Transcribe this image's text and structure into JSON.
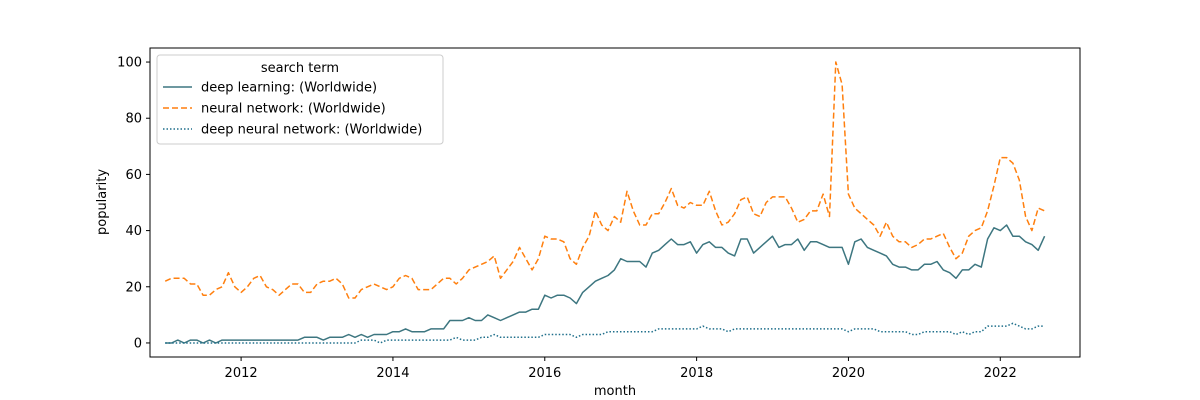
{
  "chart_data": {
    "type": "line",
    "xlabel": "month",
    "ylabel": "popularity",
    "xlim": [
      2010.8,
      2023.05
    ],
    "ylim": [
      -5,
      105
    ],
    "x_ticks": [
      2012,
      2014,
      2016,
      2018,
      2020,
      2022
    ],
    "y_ticks": [
      0,
      20,
      40,
      60,
      80,
      100
    ],
    "grid": false,
    "legend": {
      "title": "search term",
      "placement": "top-left"
    },
    "x_start": "2011-01",
    "series": [
      {
        "name": "deep learning: (Worldwide)",
        "color": "#3d7680",
        "style": "solid",
        "values": [
          0,
          0,
          1,
          0,
          1,
          1,
          0,
          1,
          0,
          1,
          1,
          1,
          1,
          1,
          1,
          1,
          1,
          1,
          1,
          1,
          1,
          1,
          2,
          2,
          2,
          1,
          2,
          2,
          2,
          3,
          2,
          3,
          2,
          3,
          3,
          3,
          4,
          4,
          5,
          4,
          4,
          4,
          5,
          5,
          5,
          8,
          8,
          8,
          9,
          8,
          8,
          10,
          9,
          8,
          9,
          10,
          11,
          11,
          12,
          12,
          17,
          16,
          17,
          17,
          16,
          14,
          18,
          20,
          22,
          23,
          24,
          26,
          30,
          29,
          29,
          29,
          27,
          32,
          33,
          35,
          37,
          35,
          35,
          36,
          32,
          35,
          36,
          34,
          34,
          32,
          31,
          37,
          37,
          32,
          34,
          36,
          38,
          34,
          35,
          35,
          37,
          33,
          36,
          36,
          35,
          34,
          34,
          34,
          28,
          36,
          37,
          34,
          33,
          32,
          31,
          28,
          27,
          27,
          26,
          26,
          28,
          28,
          29,
          26,
          25,
          23,
          26,
          26,
          28,
          27,
          37,
          41,
          40,
          42,
          38,
          38,
          36,
          35,
          33,
          38
        ]
      },
      {
        "name": "neural network: (Worldwide)",
        "color": "#ff7f0e",
        "style": "dashed",
        "values": [
          22,
          23,
          23,
          23,
          21,
          21,
          17,
          17,
          19,
          20,
          25,
          20,
          18,
          20,
          23,
          24,
          20,
          19,
          17,
          19,
          21,
          21,
          18,
          18,
          21,
          22,
          22,
          23,
          21,
          16,
          16,
          19,
          20,
          21,
          20,
          19,
          20,
          23,
          24,
          23,
          19,
          19,
          19,
          21,
          23,
          23,
          21,
          23,
          26,
          27,
          28,
          29,
          31,
          23,
          26,
          29,
          34,
          30,
          26,
          30,
          38,
          37,
          37,
          36,
          30,
          28,
          34,
          38,
          47,
          42,
          40,
          45,
          43,
          54,
          47,
          42,
          42,
          46,
          46,
          50,
          55,
          49,
          48,
          50,
          49,
          49,
          54,
          47,
          42,
          43,
          46,
          51,
          52,
          46,
          45,
          50,
          52,
          52,
          52,
          48,
          43,
          44,
          47,
          47,
          53,
          45,
          100,
          92,
          53,
          48,
          46,
          44,
          42,
          38,
          43,
          38,
          36,
          36,
          34,
          35,
          37,
          37,
          38,
          39,
          34,
          30,
          32,
          38,
          40,
          41,
          47,
          56,
          66,
          66,
          64,
          58,
          45,
          40,
          48,
          47
        ]
      },
      {
        "name": "deep neural network: (Worldwide)",
        "color": "#1f6f8b",
        "style": "dotted",
        "values": [
          0,
          0,
          0,
          0,
          0,
          0,
          0,
          0,
          0,
          0,
          0,
          0,
          0,
          0,
          0,
          0,
          0,
          0,
          0,
          0,
          0,
          0,
          0,
          0,
          0,
          0,
          0,
          0,
          0,
          0,
          0,
          1,
          1,
          1,
          0,
          1,
          1,
          1,
          1,
          1,
          1,
          1,
          1,
          1,
          1,
          1,
          2,
          1,
          1,
          1,
          2,
          2,
          3,
          2,
          2,
          2,
          2,
          2,
          2,
          2,
          3,
          3,
          3,
          3,
          3,
          2,
          3,
          3,
          3,
          3,
          4,
          4,
          4,
          4,
          4,
          4,
          4,
          4,
          5,
          5,
          5,
          5,
          5,
          5,
          5,
          6,
          5,
          5,
          5,
          4,
          5,
          5,
          5,
          5,
          5,
          5,
          5,
          5,
          5,
          5,
          5,
          5,
          5,
          5,
          5,
          5,
          5,
          5,
          4,
          5,
          5,
          5,
          5,
          4,
          4,
          4,
          4,
          4,
          3,
          3,
          4,
          4,
          4,
          4,
          4,
          3,
          4,
          3,
          4,
          4,
          6,
          6,
          6,
          6,
          7,
          6,
          5,
          5,
          6,
          6
        ]
      }
    ]
  }
}
